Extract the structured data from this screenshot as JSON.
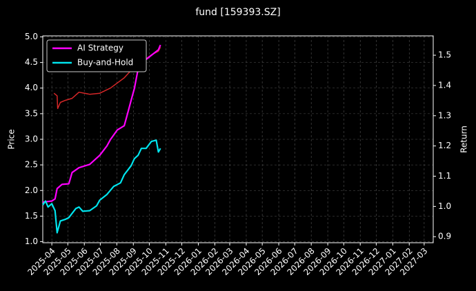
{
  "chart_data": {
    "type": "line",
    "title": "fund [159393.SZ]",
    "ylabel": "Price",
    "y2label": "Return",
    "xlim": [
      "2025-03-15",
      "2027-03-18"
    ],
    "xticks": [
      "2025-04",
      "2025-05",
      "2025-06",
      "2025-07",
      "2025-08",
      "2025-09",
      "2025-10",
      "2025-11",
      "2025-12",
      "2026-01",
      "2026-02",
      "2026-03",
      "2026-04",
      "2026-05",
      "2026-06",
      "2026-07",
      "2026-08",
      "2026-09",
      "2026-10",
      "2026-11",
      "2026-12",
      "2027-01",
      "2027-02",
      "2027-03"
    ],
    "ylim": [
      0.98,
      5.02
    ],
    "yticks": [
      {
        "value": 1,
        "label": "1.0"
      },
      1.5,
      {
        "value": 2,
        "label": "2.0"
      },
      2.5,
      {
        "value": 3,
        "label": "3.0"
      },
      3.5,
      {
        "value": 4,
        "label": "4.0"
      },
      4.5,
      {
        "value": 5,
        "label": "5.0"
      }
    ],
    "y2lim": [
      0.88,
      1.564
    ],
    "y2ticks": [
      0.9,
      {
        "value": 1,
        "label": "1.0"
      },
      1.1,
      1.2,
      1.3,
      1.4,
      1.5
    ],
    "grid": true,
    "legend": "upper left",
    "price": {
      "color": "#d62728",
      "x": [
        "2025-04-05",
        "2025-04-11",
        "2025-04-12",
        "2025-04-17",
        "2025-04-26",
        "2025-05-09",
        "2025-05-22",
        "2025-06-11",
        "2025-06-30",
        "2025-07-20",
        "2025-08-02",
        "2025-08-15",
        "2025-08-28",
        "2025-09-10",
        "2025-09-22",
        "2025-10-05",
        "2025-10-18",
        "2025-10-22"
      ],
      "values": [
        3.9,
        3.85,
        3.6,
        3.72,
        3.76,
        3.8,
        3.92,
        3.88,
        3.9,
        4.0,
        4.1,
        4.2,
        4.35,
        4.45,
        4.55,
        4.65,
        4.72,
        4.8
      ]
    },
    "series": [
      {
        "name": "AI Strategy",
        "color": "#ff00ff",
        "axis": "y2",
        "x": [
          "2025-03-15",
          "2025-04-01",
          "2025-04-07",
          "2025-04-11",
          "2025-04-20",
          "2025-05-03",
          "2025-05-09",
          "2025-05-22",
          "2025-06-11",
          "2025-06-30",
          "2025-07-13",
          "2025-07-20",
          "2025-08-02",
          "2025-08-15",
          "2025-08-21",
          "2025-08-28",
          "2025-09-03",
          "2025-09-10",
          "2025-09-22",
          "2025-10-05",
          "2025-10-18",
          "2025-10-22"
        ],
        "values": [
          1.014,
          1.018,
          1.025,
          1.059,
          1.073,
          1.075,
          1.112,
          1.128,
          1.139,
          1.169,
          1.199,
          1.221,
          1.253,
          1.267,
          1.306,
          1.352,
          1.39,
          1.454,
          1.482,
          1.5,
          1.518,
          1.534
        ]
      },
      {
        "name": "Buy-and-Hold",
        "color": "#00e5ee",
        "axis": "y2",
        "x": [
          "2025-03-15",
          "2025-03-20",
          "2025-03-25",
          "2025-04-01",
          "2025-04-07",
          "2025-04-11",
          "2025-04-17",
          "2025-04-26",
          "2025-05-03",
          "2025-05-16",
          "2025-05-22",
          "2025-05-29",
          "2025-06-11",
          "2025-06-24",
          "2025-06-30",
          "2025-07-13",
          "2025-07-26",
          "2025-08-08",
          "2025-08-15",
          "2025-08-28",
          "2025-09-03",
          "2025-09-10",
          "2025-09-16",
          "2025-09-25",
          "2025-10-05",
          "2025-10-14",
          "2025-10-18",
          "2025-10-22"
        ],
        "values": [
          1.005,
          1.018,
          0.998,
          1.009,
          0.986,
          0.913,
          0.952,
          0.957,
          0.963,
          0.993,
          0.998,
          0.984,
          0.986,
          1.002,
          1.021,
          1.039,
          1.066,
          1.078,
          1.105,
          1.135,
          1.158,
          1.169,
          1.192,
          1.192,
          1.215,
          1.219,
          1.18,
          1.192
        ]
      }
    ]
  }
}
